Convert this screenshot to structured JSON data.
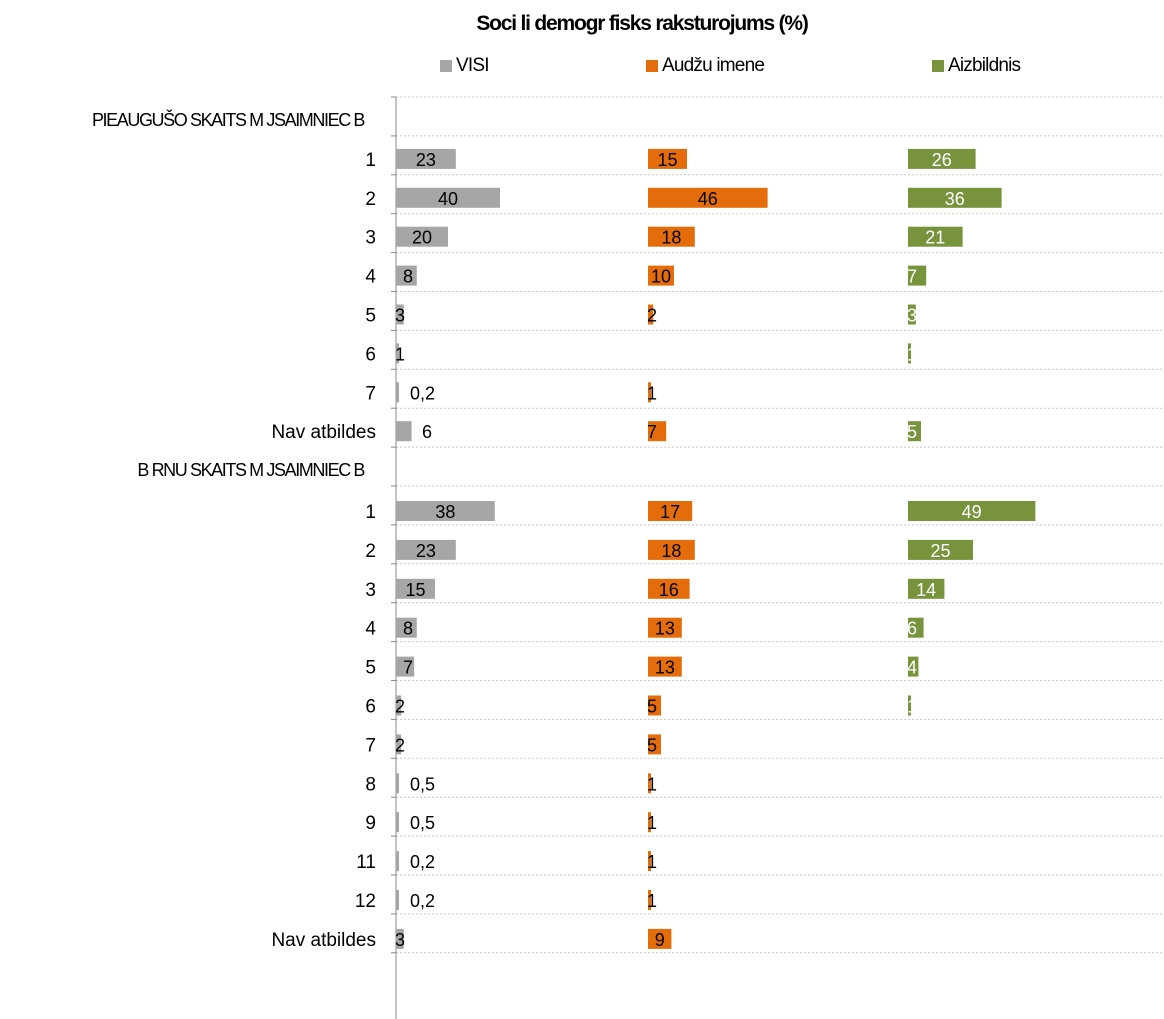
{
  "chart_data": {
    "type": "bar",
    "orientation": "horizontal",
    "title": "Soci li demogr fisks raksturojums (%)",
    "legend_position": "top",
    "grid": true,
    "series": [
      {
        "name": "VISI",
        "color": "#A6A6A6"
      },
      {
        "name": "Audžu imene",
        "color": "#E46C0A"
      },
      {
        "name": "Aizbildnis",
        "color": "#77933C"
      }
    ],
    "groups": [
      {
        "label": "PIEAUGUŠO SKAITS M JSAIMNIEC B",
        "rows": [
          {
            "category": "1",
            "values": [
              23,
              15,
              26
            ],
            "labels": [
              "23",
              "15",
              "26"
            ]
          },
          {
            "category": "2",
            "values": [
              40,
              46,
              36
            ],
            "labels": [
              "40",
              "46",
              "36"
            ]
          },
          {
            "category": "3",
            "values": [
              20,
              18,
              21
            ],
            "labels": [
              "20",
              "18",
              "21"
            ]
          },
          {
            "category": "4",
            "values": [
              8,
              10,
              7
            ],
            "labels": [
              "8",
              "10",
              "7"
            ]
          },
          {
            "category": "5",
            "values": [
              3,
              2,
              3
            ],
            "labels": [
              "3",
              "2",
              "3"
            ]
          },
          {
            "category": "6",
            "values": [
              1,
              null,
              1
            ],
            "labels": [
              "1",
              "",
              "1"
            ]
          },
          {
            "category": "7",
            "values": [
              0.2,
              1,
              null
            ],
            "labels": [
              "0,2",
              "1",
              ""
            ]
          },
          {
            "category": "Nav atbildes",
            "values": [
              6,
              7,
              5
            ],
            "labels": [
              "6",
              "7",
              "5"
            ]
          }
        ]
      },
      {
        "label": "B RNU SKAITS M JSAIMNIEC B",
        "rows": [
          {
            "category": "1",
            "values": [
              38,
              17,
              49
            ],
            "labels": [
              "38",
              "17",
              "49"
            ]
          },
          {
            "category": "2",
            "values": [
              23,
              18,
              25
            ],
            "labels": [
              "23",
              "18",
              "25"
            ]
          },
          {
            "category": "3",
            "values": [
              15,
              16,
              14
            ],
            "labels": [
              "15",
              "16",
              "14"
            ]
          },
          {
            "category": "4",
            "values": [
              8,
              13,
              6
            ],
            "labels": [
              "8",
              "13",
              "6"
            ]
          },
          {
            "category": "5",
            "values": [
              7,
              13,
              4
            ],
            "labels": [
              "7",
              "13",
              "4"
            ]
          },
          {
            "category": "6",
            "values": [
              2,
              5,
              1
            ],
            "labels": [
              "2",
              "5",
              "1"
            ]
          },
          {
            "category": "7",
            "values": [
              2,
              5,
              null
            ],
            "labels": [
              "2",
              "5",
              ""
            ]
          },
          {
            "category": "8",
            "values": [
              0.5,
              1,
              null
            ],
            "labels": [
              "0,5",
              "1",
              ""
            ]
          },
          {
            "category": "9",
            "values": [
              0.5,
              1,
              null
            ],
            "labels": [
              "0,5",
              "1",
              ""
            ]
          },
          {
            "category": "11",
            "values": [
              0.2,
              1,
              null
            ],
            "labels": [
              "0,2",
              "1",
              ""
            ]
          },
          {
            "category": "12",
            "values": [
              0.2,
              1,
              null
            ],
            "labels": [
              "0,2",
              "1",
              ""
            ]
          },
          {
            "category": "Nav atbildes",
            "values": [
              3,
              9,
              null
            ],
            "labels": [
              "3",
              "9",
              ""
            ]
          }
        ]
      }
    ]
  }
}
